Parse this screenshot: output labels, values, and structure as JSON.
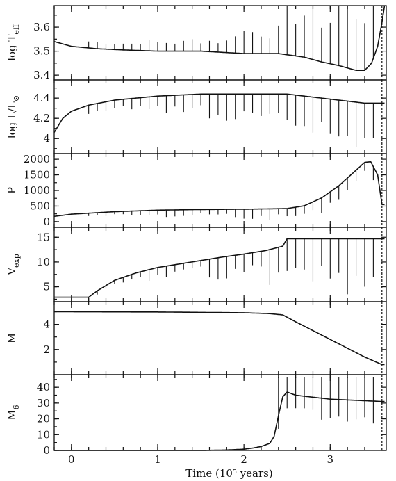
{
  "chart_data": {
    "type": "line",
    "xlabel": "Time (10⁵ years)",
    "xlim": [
      -0.2,
      3.65
    ],
    "xticks": [
      "0",
      "1",
      "2",
      "3"
    ],
    "end_marker_time": 3.6,
    "panels": [
      {
        "id": "teff",
        "ylabel": "log T",
        "ylabel_sub": "eff",
        "ylim": [
          3.38,
          3.69
        ],
        "yticks": [
          "3.4",
          "3.5",
          "3.6"
        ],
        "ytick_values": [
          3.4,
          3.5,
          3.6
        ],
        "series": [
          {
            "x": [
              -0.2,
              0.0,
              0.3,
              0.6,
              1.0,
              1.5,
              2.0,
              2.4,
              2.7,
              2.9,
              3.1,
              3.3,
              3.4,
              3.48,
              3.55,
              3.6,
              3.63
            ],
            "y": [
              3.54,
              3.52,
              3.51,
              3.505,
              3.5,
              3.5,
              3.49,
              3.49,
              3.475,
              3.455,
              3.44,
              3.42,
              3.42,
              3.45,
              3.52,
              3.62,
              3.69
            ]
          }
        ],
        "spikes": {
          "direction": "up",
          "length": [
            0.03,
            0.04,
            0.05,
            0.1,
            0.2,
            0.28
          ]
        }
      },
      {
        "id": "lum",
        "ylabel": "log L/L",
        "ylabel_sub": "⊙",
        "ylim": [
          3.85,
          4.58
        ],
        "yticks": [
          "4",
          "4.2",
          "4.4"
        ],
        "ytick_values": [
          4.0,
          4.2,
          4.4
        ],
        "series": [
          {
            "x": [
              -0.2,
              -0.1,
              0.0,
              0.2,
              0.5,
              1.0,
              1.5,
              2.0,
              2.5,
              2.7,
              3.0,
              3.2,
              3.4,
              3.6
            ],
            "y": [
              4.06,
              4.2,
              4.27,
              4.33,
              4.38,
              4.42,
              4.44,
              4.44,
              4.44,
              4.42,
              4.39,
              4.37,
              4.35,
              4.35
            ]
          }
        ],
        "spikes": {
          "direction": "down",
          "length": [
            0.1,
            0.15,
            0.25,
            0.3,
            0.4
          ]
        }
      },
      {
        "id": "period",
        "ylabel": "P",
        "ylim": [
          -180,
          2180
        ],
        "yticks": [
          "0",
          "500",
          "1000",
          "1500",
          "2000"
        ],
        "ytick_values": [
          0,
          500,
          1000,
          1500,
          2000
        ],
        "series": [
          {
            "x": [
              -0.2,
              0.0,
              0.5,
              1.0,
              1.5,
              2.0,
              2.5,
              2.7,
              2.9,
              3.1,
              3.3,
              3.4,
              3.47,
              3.55,
              3.6
            ],
            "y": [
              170,
              240,
              320,
              370,
              390,
              400,
              420,
              510,
              760,
              1150,
              1650,
              1900,
              1920,
              1500,
              550
            ]
          }
        ],
        "spikes": {
          "direction": "down",
          "length": [
            120,
            200,
            300,
            400
          ]
        }
      },
      {
        "id": "vexp",
        "ylabel": "V",
        "ylabel_sub": "exp",
        "ylim": [
          2.0,
          17.0
        ],
        "yticks": [
          "5",
          "10",
          "15"
        ],
        "ytick_values": [
          5,
          10,
          15
        ],
        "series": [
          {
            "x": [
              -0.2,
              0.2,
              0.3,
              0.5,
              0.75,
              1.0,
              1.25,
              1.5,
              1.75,
              2.0,
              2.25,
              2.45,
              2.5,
              3.6
            ],
            "y": [
              2.9,
              2.9,
              4.2,
              6.3,
              7.8,
              8.9,
              9.6,
              10.3,
              11.0,
              11.6,
              12.3,
              13.2,
              14.7,
              14.7
            ]
          }
        ],
        "spikes": {
          "direction": "down",
          "length": [
            1.0,
            2.0,
            4.0,
            8.0,
            11.5
          ]
        }
      },
      {
        "id": "mass",
        "ylabel": "M",
        "ylim": [
          0.0,
          5.8
        ],
        "yticks": [
          "2",
          "4"
        ],
        "ytick_values": [
          2,
          4
        ],
        "series": [
          {
            "x": [
              -0.2,
              1.0,
              2.0,
              2.3,
              2.45,
              2.6,
              3.0,
              3.4,
              3.6
            ],
            "y": [
              5.0,
              4.98,
              4.92,
              4.85,
              4.75,
              4.2,
              2.8,
              1.4,
              0.8
            ]
          }
        ],
        "spikes": null
      },
      {
        "id": "mdot",
        "ylabel": "M",
        "ylabel_sub": "6",
        "ylim": [
          0,
          48
        ],
        "yticks": [
          "0",
          "10",
          "20",
          "30",
          "40"
        ],
        "ytick_values": [
          0,
          10,
          20,
          30,
          40
        ],
        "series": [
          {
            "x": [
              -0.2,
              1.5,
              1.8,
              2.0,
              2.1,
              2.2,
              2.3,
              2.35,
              2.4,
              2.45,
              2.5,
              2.6,
              3.0,
              3.4,
              3.6
            ],
            "y": [
              0.0,
              0.0,
              0.3,
              0.8,
              1.5,
              2.5,
              4.5,
              9.0,
              22.0,
              34.0,
              37.0,
              35.0,
              32.5,
              31.5,
              31.0
            ]
          }
        ],
        "spikes": {
          "direction": "up_to_top",
          "length": [
            10,
            20,
            30,
            40
          ]
        }
      }
    ]
  }
}
